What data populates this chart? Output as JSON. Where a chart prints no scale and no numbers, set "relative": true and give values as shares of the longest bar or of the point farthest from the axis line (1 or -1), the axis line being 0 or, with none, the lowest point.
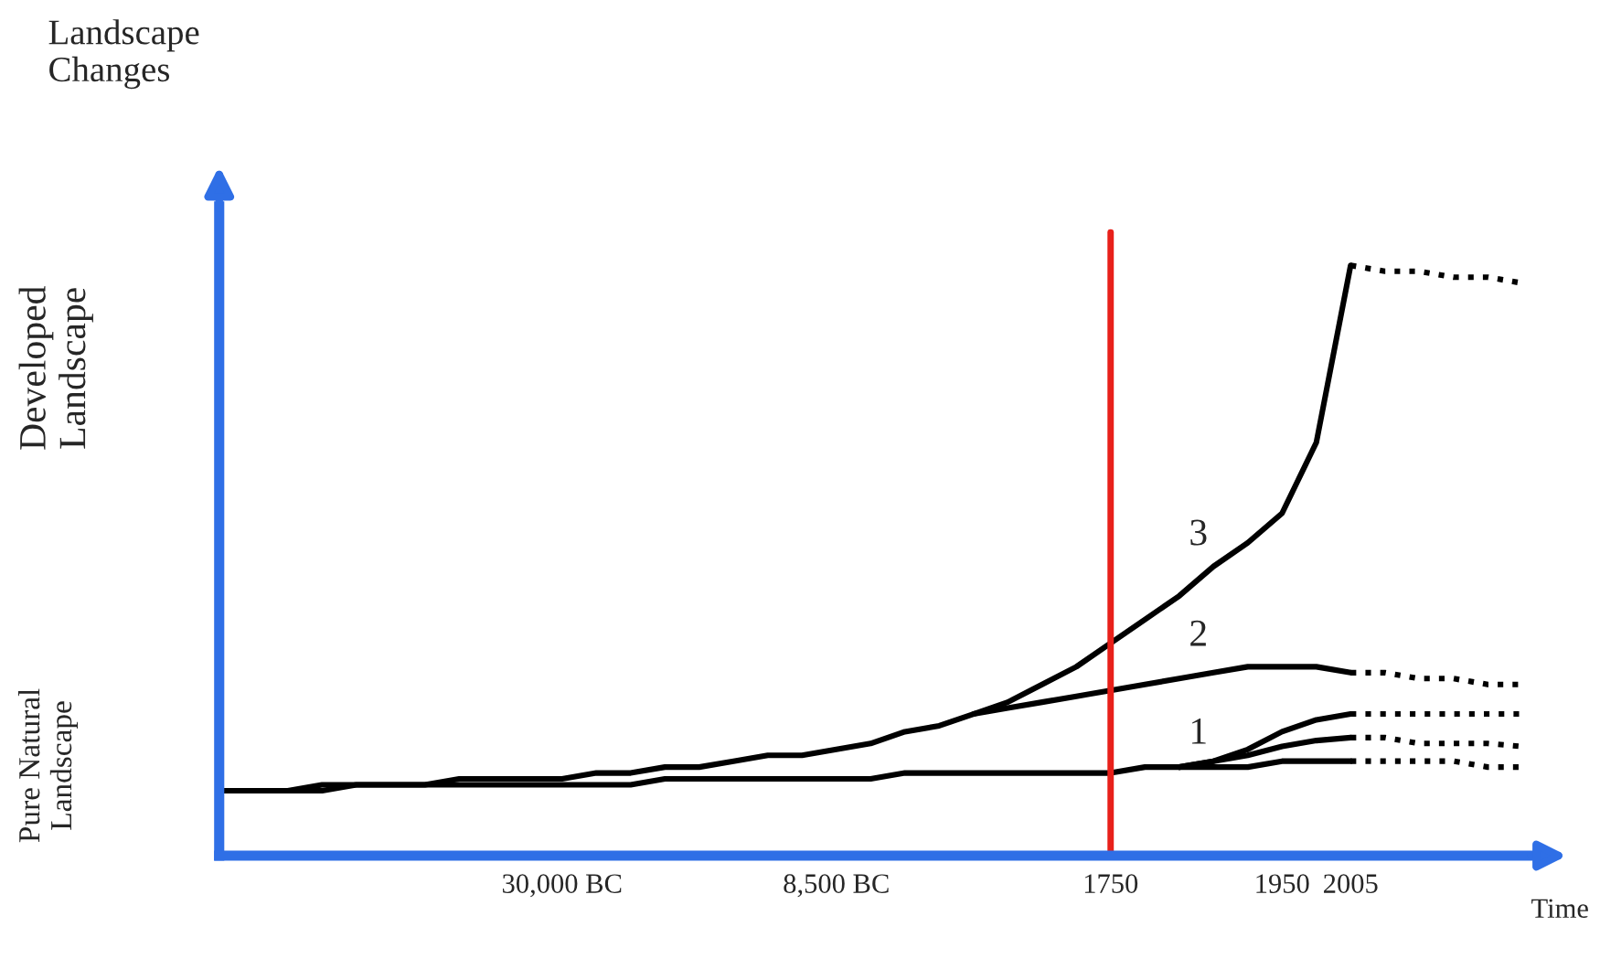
{
  "chart_data": {
    "type": "line",
    "relative": true,
    "ylabel": "Landscape Changes",
    "xlabel": "Time",
    "categories": [
      null,
      null,
      null,
      null,
      null,
      null,
      null,
      null,
      null,
      null,
      "30,000 BC",
      null,
      null,
      null,
      null,
      null,
      null,
      null,
      "8,500 BC",
      null,
      null,
      null,
      null,
      null,
      null,
      null,
      "1750",
      null,
      null,
      null,
      null,
      "1950",
      null,
      "2005",
      null,
      null,
      null,
      null,
      null
    ],
    "series": [
      {
        "color": "#000000",
        "line_style": "solid",
        "values": [
          0.11,
          0.11,
          0.11,
          0.11,
          0.12,
          0.12,
          0.12,
          0.12,
          0.12,
          0.12,
          0.12,
          0.12,
          0.12,
          0.13,
          0.13,
          0.13,
          0.13,
          0.13,
          0.13,
          0.13,
          0.14,
          0.14,
          0.14,
          0.14,
          0.14,
          0.14,
          0.14,
          0.15,
          0.15,
          0.15,
          0.15,
          0.16,
          0.16,
          0.16,
          null,
          null,
          null,
          null,
          null
        ]
      },
      {
        "color": "#000000",
        "line_style": "dotted",
        "values": [
          null,
          null,
          null,
          null,
          null,
          null,
          null,
          null,
          null,
          null,
          null,
          null,
          null,
          null,
          null,
          null,
          null,
          null,
          null,
          null,
          null,
          null,
          null,
          null,
          null,
          null,
          null,
          null,
          null,
          null,
          null,
          null,
          null,
          0.16,
          0.16,
          0.16,
          0.16,
          0.15,
          0.15
        ]
      },
      {
        "color": "#000000",
        "line_style": "solid",
        "values": [
          0.11,
          0.11,
          0.11,
          0.12,
          0.12,
          0.12,
          0.12,
          0.13,
          0.13,
          0.13,
          0.13,
          0.14,
          0.14,
          0.15,
          0.15,
          0.16,
          0.17,
          0.17,
          0.18,
          0.19,
          0.21,
          0.22,
          0.24,
          0.26,
          0.29,
          0.32,
          0.36,
          0.4,
          0.44,
          0.49,
          0.53,
          0.58,
          0.7,
          1.0,
          null,
          null,
          null,
          null,
          null
        ]
      },
      {
        "color": "#000000",
        "line_style": "dotted",
        "values": [
          null,
          null,
          null,
          null,
          null,
          null,
          null,
          null,
          null,
          null,
          null,
          null,
          null,
          null,
          null,
          null,
          null,
          null,
          null,
          null,
          null,
          null,
          null,
          null,
          null,
          null,
          null,
          null,
          null,
          null,
          null,
          null,
          null,
          1.0,
          0.99,
          0.99,
          0.98,
          0.98,
          0.97
        ]
      },
      {
        "color": "#000000",
        "line_style": "solid",
        "values": [
          null,
          null,
          null,
          null,
          null,
          null,
          null,
          null,
          null,
          null,
          null,
          null,
          null,
          null,
          null,
          null,
          null,
          null,
          null,
          null,
          null,
          null,
          0.24,
          0.25,
          0.26,
          0.27,
          0.28,
          0.29,
          0.3,
          0.31,
          0.32,
          0.32,
          0.32,
          0.31,
          null,
          null,
          null,
          null,
          null
        ]
      },
      {
        "color": "#000000",
        "line_style": "dotted",
        "values": [
          null,
          null,
          null,
          null,
          null,
          null,
          null,
          null,
          null,
          null,
          null,
          null,
          null,
          null,
          null,
          null,
          null,
          null,
          null,
          null,
          null,
          null,
          null,
          null,
          null,
          null,
          null,
          null,
          null,
          null,
          null,
          null,
          null,
          0.31,
          0.31,
          0.3,
          0.3,
          0.29,
          0.29
        ]
      },
      {
        "color": "#000000",
        "line_style": "solid",
        "values": [
          null,
          null,
          null,
          null,
          null,
          null,
          null,
          null,
          null,
          null,
          null,
          null,
          null,
          null,
          null,
          null,
          null,
          null,
          null,
          null,
          null,
          null,
          null,
          null,
          null,
          null,
          null,
          null,
          0.15,
          0.16,
          0.18,
          0.21,
          0.23,
          0.24,
          null,
          null,
          null,
          null,
          null
        ]
      },
      {
        "color": "#000000",
        "line_style": "dotted",
        "values": [
          null,
          null,
          null,
          null,
          null,
          null,
          null,
          null,
          null,
          null,
          null,
          null,
          null,
          null,
          null,
          null,
          null,
          null,
          null,
          null,
          null,
          null,
          null,
          null,
          null,
          null,
          null,
          null,
          null,
          null,
          null,
          null,
          null,
          0.24,
          0.24,
          0.24,
          0.24,
          0.24,
          0.24
        ]
      },
      {
        "color": "#000000",
        "line_style": "solid",
        "values": [
          null,
          null,
          null,
          null,
          null,
          null,
          null,
          null,
          null,
          null,
          null,
          null,
          null,
          null,
          null,
          null,
          null,
          null,
          null,
          null,
          null,
          null,
          null,
          null,
          null,
          null,
          null,
          null,
          0.15,
          0.16,
          0.17,
          0.185,
          0.195,
          0.2,
          null,
          null,
          null,
          null,
          null
        ]
      },
      {
        "color": "#000000",
        "line_style": "dotted",
        "values": [
          null,
          null,
          null,
          null,
          null,
          null,
          null,
          null,
          null,
          null,
          null,
          null,
          null,
          null,
          null,
          null,
          null,
          null,
          null,
          null,
          null,
          null,
          null,
          null,
          null,
          null,
          null,
          null,
          null,
          null,
          null,
          null,
          null,
          0.2,
          0.2,
          0.19,
          0.19,
          0.19,
          0.185
        ]
      }
    ],
    "ref_lines": [
      {
        "axis": "x",
        "value": "1750",
        "color": "#e8201a"
      }
    ],
    "annotations": [
      "Developed Landscape",
      "Pure Natural Landscape",
      "3",
      "2",
      "1"
    ],
    "grid": false
  }
}
